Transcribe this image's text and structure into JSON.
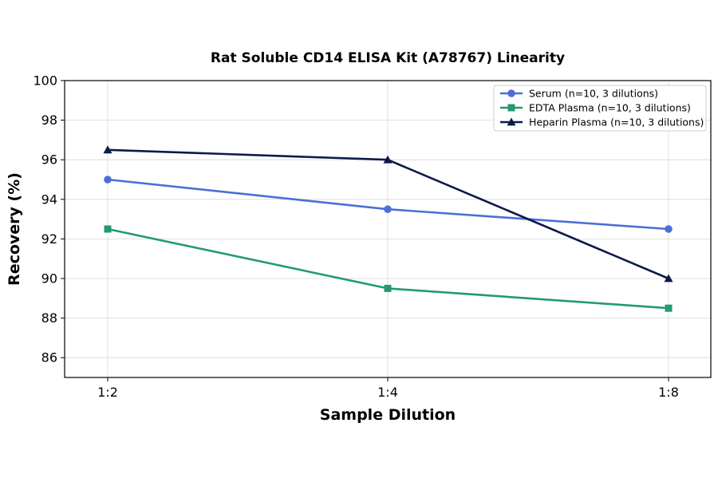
{
  "chart_data": {
    "type": "line",
    "title": "Rat Soluble CD14 ELISA Kit (A78767) Linearity",
    "xlabel": "Sample Dilution",
    "ylabel": "Recovery (%)",
    "categories": [
      "1:2",
      "1:4",
      "1:8"
    ],
    "ylim": [
      85,
      100
    ],
    "yticks": [
      86,
      88,
      90,
      92,
      94,
      96,
      98,
      100
    ],
    "grid": true,
    "legend_position": "top-right",
    "series": [
      {
        "name": "Serum (n=10, 3 dilutions)",
        "values": [
          95.0,
          93.5,
          92.5
        ],
        "color": "#4a6fd6",
        "marker": "circle"
      },
      {
        "name": "EDTA Plasma (n=10, 3 dilutions)",
        "values": [
          92.5,
          89.5,
          88.5
        ],
        "color": "#229a73",
        "marker": "square"
      },
      {
        "name": "Heparin Plasma (n=10, 3 dilutions)",
        "values": [
          96.5,
          96.0,
          90.0
        ],
        "color": "#0d1a47",
        "marker": "triangle"
      }
    ]
  }
}
